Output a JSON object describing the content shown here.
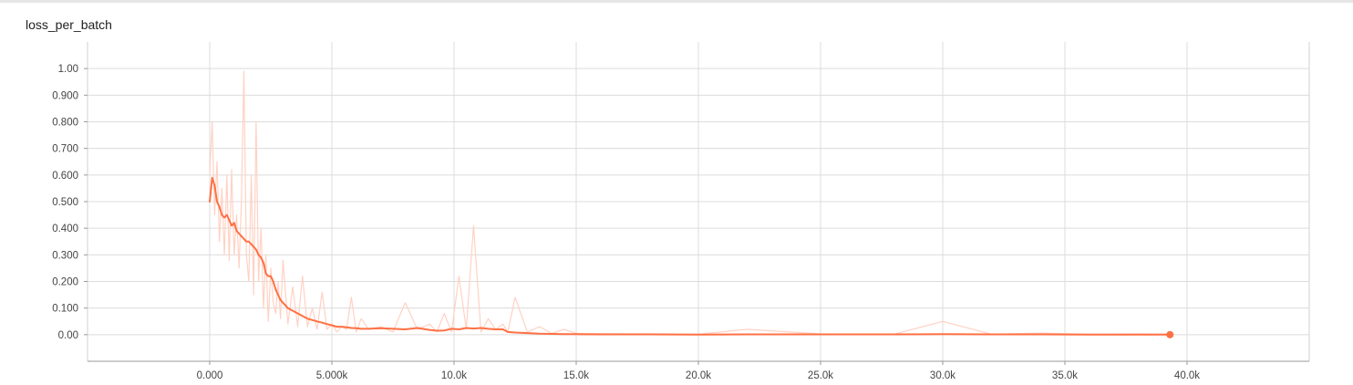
{
  "chart_data": {
    "type": "line",
    "title": "loss_per_batch",
    "xlabel": "",
    "ylabel": "",
    "xlim": [
      -5000,
      45000
    ],
    "ylim": [
      -0.1,
      1.1
    ],
    "x_ticks": [
      0,
      5000,
      10000,
      15000,
      20000,
      25000,
      30000,
      35000,
      40000
    ],
    "x_tick_labels": [
      "0.000",
      "5.000k",
      "10.0k",
      "15.0k",
      "20.0k",
      "25.0k",
      "30.0k",
      "35.0k",
      "40.0k"
    ],
    "y_ticks": [
      0,
      0.1,
      0.2,
      0.3,
      0.4,
      0.5,
      0.6,
      0.7,
      0.8,
      0.9,
      1.0
    ],
    "y_tick_labels": [
      "0.00",
      "0.100",
      "0.200",
      "0.300",
      "0.400",
      "0.500",
      "0.600",
      "0.700",
      "0.800",
      "0.900",
      "1.00"
    ],
    "grid": true,
    "series": [
      {
        "color": "#ff7043",
        "raw_color": "#ffd2c4",
        "x": [
          0,
          100,
          200,
          300,
          400,
          500,
          600,
          700,
          800,
          900,
          1000,
          1100,
          1200,
          1300,
          1400,
          1500,
          1600,
          1700,
          1800,
          1900,
          2000,
          2100,
          2200,
          2300,
          2400,
          2500,
          2600,
          2700,
          2800,
          2900,
          3000,
          3200,
          3400,
          3600,
          3800,
          4000,
          4200,
          4400,
          4600,
          4800,
          5000,
          5200,
          5400,
          5600,
          5800,
          6000,
          6200,
          6500,
          7000,
          7500,
          8000,
          8500,
          9000,
          9300,
          9600,
          9900,
          10200,
          10500,
          10800,
          11100,
          11400,
          11700,
          12000,
          12200,
          12500,
          13000,
          13500,
          14000,
          14500,
          15000,
          16000,
          18000,
          20000,
          22000,
          25000,
          28000,
          30000,
          32000,
          34000,
          36000,
          38000,
          39300
        ],
        "y": [
          0.5,
          0.59,
          0.56,
          0.5,
          0.48,
          0.45,
          0.44,
          0.45,
          0.43,
          0.41,
          0.42,
          0.39,
          0.38,
          0.37,
          0.36,
          0.35,
          0.35,
          0.34,
          0.33,
          0.32,
          0.3,
          0.29,
          0.27,
          0.23,
          0.22,
          0.22,
          0.2,
          0.17,
          0.15,
          0.13,
          0.12,
          0.1,
          0.09,
          0.08,
          0.07,
          0.06,
          0.055,
          0.05,
          0.045,
          0.04,
          0.035,
          0.03,
          0.03,
          0.028,
          0.025,
          0.024,
          0.022,
          0.022,
          0.024,
          0.022,
          0.02,
          0.025,
          0.018,
          0.015,
          0.016,
          0.022,
          0.02,
          0.025,
          0.023,
          0.025,
          0.022,
          0.02,
          0.02,
          0.01,
          0.008,
          0.006,
          0.004,
          0.003,
          0.002,
          0.002,
          0.001,
          0.001,
          0.0,
          0.001,
          0.001,
          0.001,
          0.002,
          0.001,
          0.001,
          0.0,
          0.0,
          0.0
        ],
        "raw_y": [
          0.6,
          0.8,
          0.45,
          0.65,
          0.35,
          0.55,
          0.3,
          0.6,
          0.28,
          0.62,
          0.3,
          0.45,
          0.25,
          0.5,
          0.99,
          0.3,
          0.2,
          0.6,
          0.15,
          0.8,
          0.2,
          0.4,
          0.1,
          0.3,
          0.05,
          0.25,
          0.12,
          0.08,
          0.2,
          0.06,
          0.28,
          0.04,
          0.18,
          0.03,
          0.22,
          0.03,
          0.1,
          0.02,
          0.16,
          0.02,
          0.04,
          0.01,
          0.03,
          0.02,
          0.14,
          0.01,
          0.06,
          0.02,
          0.03,
          0.01,
          0.12,
          0.02,
          0.04,
          0.01,
          0.08,
          0.01,
          0.22,
          0.02,
          0.41,
          0.01,
          0.06,
          0.02,
          0.04,
          0.01,
          0.14,
          0.01,
          0.03,
          0.005,
          0.02,
          0.005,
          0.004,
          0.003,
          0.002,
          0.02,
          0.003,
          0.002,
          0.05,
          0.002,
          0.006,
          0.002,
          0.003,
          0.002
        ]
      }
    ]
  }
}
